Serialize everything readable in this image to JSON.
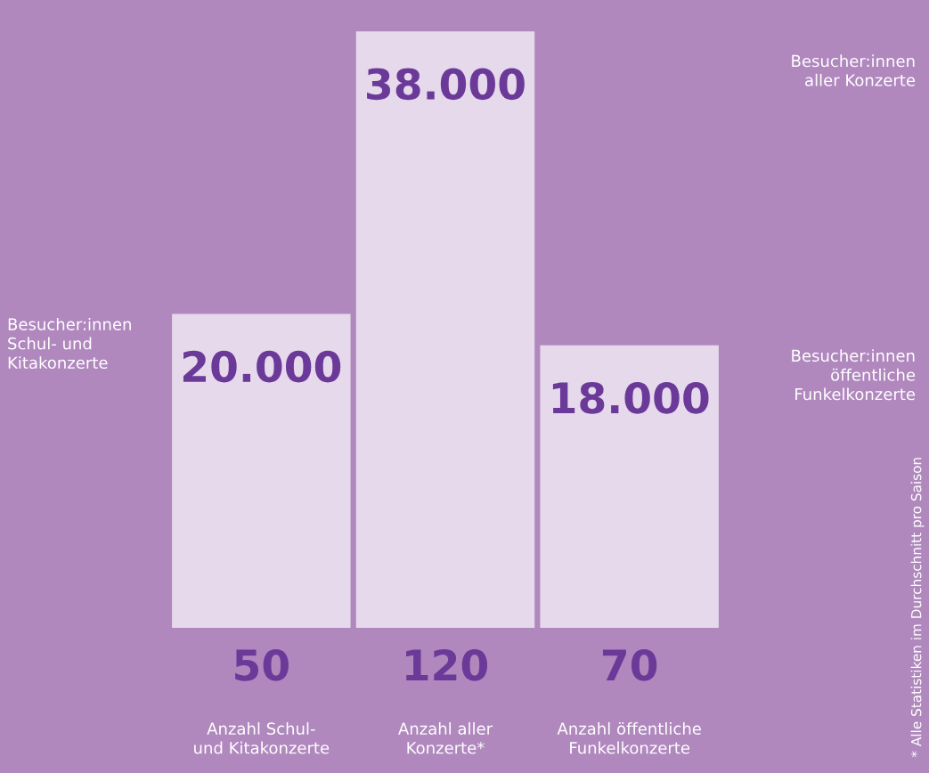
{
  "chart_data": [
    {
      "type": "bar",
      "categories": [
        null,
        null,
        null
      ],
      "values": [
        20000,
        38000,
        18000
      ],
      "value_labels": [
        "20.000",
        "38.000",
        "18.000"
      ],
      "color": "#e6d9ec",
      "ylim": [
        0,
        40000
      ],
      "annotations": [
        "Besucher:innen\nSchul- und\nKitakonzerte",
        "Besucher:innen\naller Konzerte",
        "Besucher:innen\nöffentliche\nFunkelkonzerte",
        "* Alle Statistiken im Durchschnitt pro Saison"
      ]
    },
    {
      "type": "other",
      "categories": [
        "Anzahl Schul-\nund Kitakonzerte",
        "Anzahl aller\nKonzerte*",
        "Anzahl öffentliche\nFunkelkonzerte"
      ],
      "values": [
        50,
        120,
        70
      ],
      "data_labels": true
    }
  ]
}
